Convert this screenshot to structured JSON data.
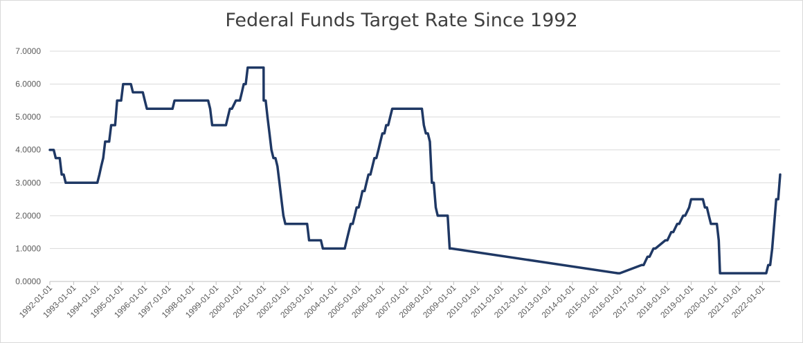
{
  "chart_data": {
    "type": "line",
    "title": "Federal Funds Target Rate Since 1992",
    "xlabel": "",
    "ylabel": "",
    "ylim": [
      0,
      7
    ],
    "yticks": [
      "0.0000",
      "1.0000",
      "2.0000",
      "3.0000",
      "4.0000",
      "5.0000",
      "6.0000",
      "7.0000"
    ],
    "xticks": [
      "1992-01-01",
      "1993-01-01",
      "1994-01-01",
      "1995-01-01",
      "1996-01-01",
      "1997-01-01",
      "1998-01-01",
      "1999-01-01",
      "2000-01-01",
      "2001-01-01",
      "2002-01-01",
      "2003-01-01",
      "2004-01-01",
      "2005-01-01",
      "2006-01-01",
      "2007-01-01",
      "2008-01-01",
      "2009-01-01",
      "2010-01-01",
      "2011-01-01",
      "2012-01-01",
      "2013-01-01",
      "2014-01-01",
      "2015-01-01",
      "2016-01-01",
      "2017-01-01",
      "2018-01-01",
      "2019-01-01",
      "2020-01-01",
      "2021-01-01",
      "2022-01-01"
    ],
    "grid": true,
    "line_color": "#1f3864",
    "series": [
      {
        "x": [
          "1992-01-01",
          "1992-03-01",
          "1992-04-01",
          "1992-06-01",
          "1992-07-01",
          "1992-08-01",
          "1992-09-01",
          "1993-12-31",
          "1994-02-01",
          "1994-03-01",
          "1994-04-01",
          "1994-05-01",
          "1994-07-01",
          "1994-08-01",
          "1994-10-01",
          "1994-11-01",
          "1995-01-01",
          "1995-02-01",
          "1995-06-01",
          "1995-07-01",
          "1995-12-01",
          "1996-01-01",
          "1996-02-01",
          "1997-03-01",
          "1997-04-01",
          "1998-09-01",
          "1998-10-01",
          "1998-11-01",
          "1999-06-01",
          "1999-07-01",
          "1999-08-01",
          "1999-09-01",
          "1999-11-01",
          "2000-01-01",
          "2000-02-01",
          "2000-03-01",
          "2000-04-01",
          "2000-05-01",
          "2000-06-01",
          "2000-12-31",
          "2001-01-01",
          "2001-02-01",
          "2001-03-01",
          "2001-04-01",
          "2001-05-01",
          "2001-06-01",
          "2001-07-01",
          "2001-08-01",
          "2001-09-01",
          "2001-10-01",
          "2001-11-01",
          "2001-12-01",
          "2002-11-01",
          "2002-12-01",
          "2003-06-01",
          "2003-07-01",
          "2004-06-01",
          "2004-07-01",
          "2004-08-01",
          "2004-09-01",
          "2004-10-01",
          "2004-11-01",
          "2004-12-01",
          "2005-01-01",
          "2005-02-01",
          "2005-03-01",
          "2005-04-01",
          "2005-05-01",
          "2005-06-01",
          "2005-07-01",
          "2005-08-01",
          "2005-09-01",
          "2005-10-01",
          "2005-11-01",
          "2005-12-01",
          "2006-01-01",
          "2006-02-01",
          "2006-03-01",
          "2006-04-01",
          "2006-05-01",
          "2006-06-01",
          "2007-09-01",
          "2007-10-01",
          "2007-11-01",
          "2007-12-01",
          "2008-01-01",
          "2008-02-01",
          "2008-03-01",
          "2008-04-01",
          "2008-05-01",
          "2008-10-01",
          "2008-11-01",
          "2008-12-01",
          "2015-12-01",
          "2016-01-01",
          "2016-12-01",
          "2017-01-01",
          "2017-03-01",
          "2017-04-01",
          "2017-06-01",
          "2017-07-01",
          "2017-12-01",
          "2018-01-01",
          "2018-03-01",
          "2018-04-01",
          "2018-06-01",
          "2018-07-01",
          "2018-09-01",
          "2018-10-01",
          "2018-12-01",
          "2019-01-01",
          "2019-07-01",
          "2019-08-01",
          "2019-09-01",
          "2019-10-01",
          "2019-11-01",
          "2020-02-01",
          "2020-03-01",
          "2020-03-20",
          "2022-03-01",
          "2022-04-01",
          "2022-05-01",
          "2022-06-01",
          "2022-07-01",
          "2022-08-01",
          "2022-09-01",
          "2022-10-01"
        ],
        "values": [
          4.0,
          4.0,
          3.75,
          3.75,
          3.25,
          3.25,
          3.0,
          3.0,
          3.25,
          3.5,
          3.75,
          4.25,
          4.25,
          4.75,
          4.75,
          5.5,
          5.5,
          6.0,
          6.0,
          5.75,
          5.75,
          5.5,
          5.25,
          5.25,
          5.5,
          5.5,
          5.25,
          4.75,
          4.75,
          5.0,
          5.25,
          5.25,
          5.5,
          5.5,
          5.75,
          6.0,
          6.0,
          6.5,
          6.5,
          6.5,
          5.5,
          5.5,
          5.0,
          4.5,
          4.0,
          3.75,
          3.75,
          3.5,
          3.0,
          2.5,
          2.0,
          1.75,
          1.75,
          1.25,
          1.25,
          1.0,
          1.0,
          1.25,
          1.5,
          1.75,
          1.75,
          2.0,
          2.25,
          2.25,
          2.5,
          2.75,
          2.75,
          3.0,
          3.25,
          3.25,
          3.5,
          3.75,
          3.75,
          4.0,
          4.25,
          4.5,
          4.5,
          4.75,
          4.75,
          5.0,
          5.25,
          5.25,
          4.75,
          4.5,
          4.5,
          4.25,
          3.0,
          3.0,
          2.25,
          2.0,
          2.0,
          1.0,
          1.0,
          0.25,
          0.25,
          0.5,
          0.5,
          0.75,
          0.75,
          1.0,
          1.0,
          1.25,
          1.25,
          1.5,
          1.5,
          1.75,
          1.75,
          2.0,
          2.0,
          2.25,
          2.5,
          2.5,
          2.25,
          2.25,
          2.0,
          1.75,
          1.75,
          1.25,
          0.25,
          0.25,
          0.5,
          0.5,
          1.0,
          1.75,
          2.5,
          2.5,
          3.25
        ]
      }
    ]
  }
}
